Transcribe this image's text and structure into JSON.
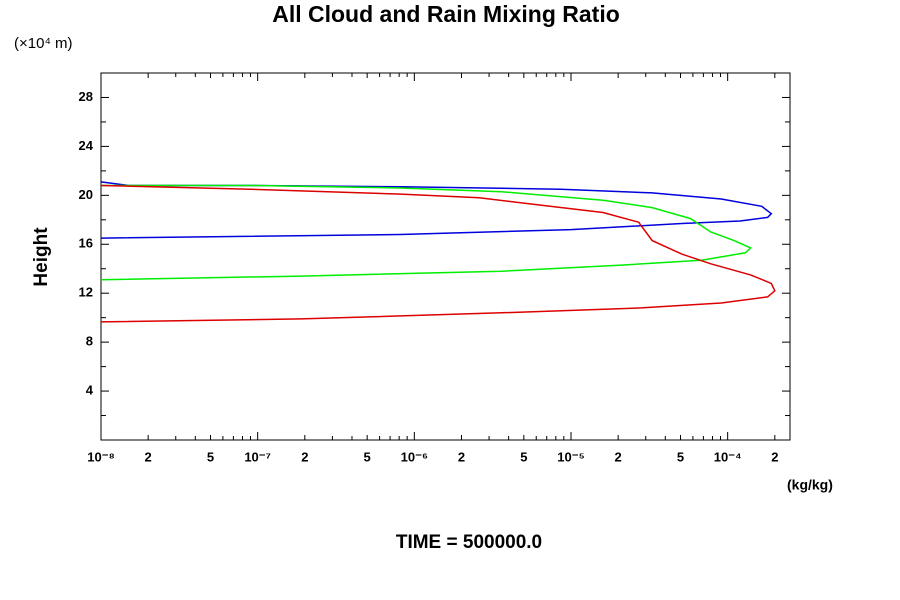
{
  "chart_data": {
    "type": "line",
    "title": "All Cloud and Rain Mixing Ratio",
    "y_unit": "(×10⁴ m)",
    "ylabel": "Height",
    "xlabel": "(kg/kg)",
    "footer": "TIME = 500000.0",
    "xscale": "log",
    "xlim": [
      1e-08,
      0.00025
    ],
    "ylim": [
      0,
      30
    ],
    "xticks": [
      {
        "value": 1e-08,
        "label": "10⁻⁸"
      },
      {
        "value": 2e-08,
        "label": "2"
      },
      {
        "value": 5e-08,
        "label": "5"
      },
      {
        "value": 1e-07,
        "label": "10⁻⁷"
      },
      {
        "value": 2e-07,
        "label": "2"
      },
      {
        "value": 5e-07,
        "label": "5"
      },
      {
        "value": 1e-06,
        "label": "10⁻⁶"
      },
      {
        "value": 2e-06,
        "label": "2"
      },
      {
        "value": 5e-06,
        "label": "5"
      },
      {
        "value": 1e-05,
        "label": "10⁻⁵"
      },
      {
        "value": 2e-05,
        "label": "2"
      },
      {
        "value": 5e-05,
        "label": "5"
      },
      {
        "value": 0.0001,
        "label": "10⁻⁴"
      },
      {
        "value": 0.0002,
        "label": "2"
      }
    ],
    "xminorticks": [
      3e-08,
      4e-08,
      6e-08,
      7e-08,
      8e-08,
      9e-08,
      3e-07,
      4e-07,
      6e-07,
      7e-07,
      8e-07,
      9e-07,
      3e-06,
      4e-06,
      6e-06,
      7e-06,
      8e-06,
      9e-06,
      3e-05,
      4e-05,
      6e-05,
      7e-05,
      8e-05,
      9e-05
    ],
    "yticks": [
      4,
      8,
      12,
      16,
      20,
      24,
      28
    ],
    "yminorticks": [
      2,
      6,
      10,
      14,
      18,
      22,
      26
    ],
    "series": [
      {
        "color": "#0000dd",
        "x": [
          1e-08,
          8.1e-07,
          1e-05,
          5.1e-05,
          0.00012,
          0.00018,
          0.00019,
          0.000165,
          9.1e-05,
          3.3e-05,
          8.6e-06,
          8.2e-07,
          9e-08,
          1.5e-08,
          1e-08
        ],
        "values": [
          16.5,
          16.8,
          17.2,
          17.7,
          17.9,
          18.2,
          18.5,
          19.1,
          19.7,
          20.2,
          20.5,
          20.7,
          20.8,
          20.8,
          21.1
        ]
      },
      {
        "color": "#00ee00",
        "x": [
          1e-08,
          1.9e-07,
          3.6e-06,
          2.1e-05,
          6.8e-05,
          0.00013,
          0.00014,
          0.00011,
          7.8e-05,
          5.8e-05,
          3.3e-05,
          1.6e-05,
          3.6e-06,
          8.2e-07,
          9e-08,
          1e-08
        ],
        "values": [
          13.1,
          13.4,
          13.8,
          14.3,
          14.7,
          15.3,
          15.7,
          16.3,
          17.0,
          18.1,
          19.0,
          19.6,
          20.3,
          20.6,
          20.8,
          20.8
        ]
      },
      {
        "color": "#dd0000",
        "x": [
          1e-08,
          1.9e-07,
          3.6e-06,
          2.8e-05,
          9.1e-05,
          0.00018,
          0.0002,
          0.00019,
          0.00014,
          7.8e-05,
          5.1e-05,
          3.3e-05,
          2.7e-05,
          1.6e-05,
          6.4e-06,
          2.6e-06,
          8.2e-07,
          9e-08,
          1e-08
        ],
        "values": [
          9.65,
          9.9,
          10.4,
          10.8,
          11.2,
          11.7,
          12.2,
          12.8,
          13.5,
          14.4,
          15.2,
          16.3,
          17.8,
          18.6,
          19.2,
          19.8,
          20.1,
          20.5,
          20.8
        ]
      }
    ]
  }
}
